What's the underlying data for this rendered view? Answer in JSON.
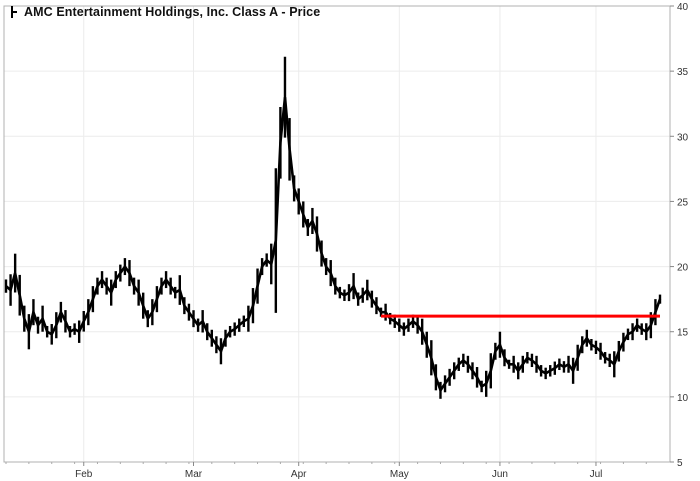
{
  "chart_data": {
    "type": "line",
    "title": "AMC Entertainment Holdings, Inc. Class A - Price",
    "xlabel": "",
    "ylabel": "",
    "ylim": [
      5,
      40
    ],
    "y_ticks": [
      5,
      10,
      15,
      20,
      25,
      30,
      35,
      40
    ],
    "x_tick_labels": [
      "Feb",
      "Mar",
      "Apr",
      "May",
      "Jun",
      "Jul"
    ],
    "x_tick_positions": [
      17,
      41,
      64,
      86,
      108,
      129
    ],
    "grid": true,
    "legend": "none",
    "series_color": "#000000",
    "series": [
      {
        "values": [
          18.5,
          18.2,
          19.5,
          17.8,
          16.0,
          15.0,
          16.5,
          15.5,
          16.0,
          15.0,
          14.8,
          15.5,
          16.5,
          15.8,
          15.0,
          15.2,
          15.0,
          15.8,
          16.5,
          17.5,
          18.5,
          19.0,
          18.5,
          18.0,
          19.0,
          19.5,
          20.0,
          19.5,
          18.5,
          18.0,
          17.0,
          16.0,
          16.5,
          17.5,
          18.5,
          19.0,
          18.5,
          18.0,
          18.2,
          17.0,
          16.5,
          16.0,
          15.5,
          15.8,
          15.0,
          14.5,
          14.0,
          13.5,
          14.5,
          15.0,
          15.2,
          15.5,
          15.8,
          16.0,
          17.0,
          18.5,
          20.0,
          20.5,
          20.2,
          22.0,
          29.5,
          33.0,
          29.0,
          26.0,
          25.0,
          24.0,
          23.0,
          23.5,
          22.5,
          21.0,
          20.0,
          19.5,
          18.5,
          18.0,
          17.8,
          18.0,
          18.5,
          17.5,
          17.8,
          18.2,
          17.5,
          17.0,
          16.5,
          16.5,
          16.0,
          15.8,
          15.5,
          15.2,
          15.5,
          15.8,
          15.5,
          15.0,
          14.0,
          13.0,
          11.5,
          10.5,
          11.0,
          11.5,
          12.0,
          12.5,
          12.8,
          12.5,
          12.0,
          11.5,
          10.8,
          11.0,
          12.0,
          13.5,
          14.0,
          13.0,
          12.5,
          12.5,
          12.0,
          12.5,
          13.0,
          12.8,
          12.5,
          12.0,
          11.8,
          12.0,
          12.2,
          12.5,
          12.3,
          12.5,
          12.0,
          13.0,
          14.0,
          14.5,
          14.0,
          13.8,
          13.5,
          13.0,
          12.8,
          12.5,
          13.5,
          14.2,
          14.8,
          15.0,
          15.5,
          15.2,
          15.0,
          15.5,
          16.5,
          17.5
        ]
      }
    ],
    "resistance_line": {
      "value": 16.2,
      "start_index": 82,
      "end_index": 143,
      "color": "#ff0000"
    }
  }
}
